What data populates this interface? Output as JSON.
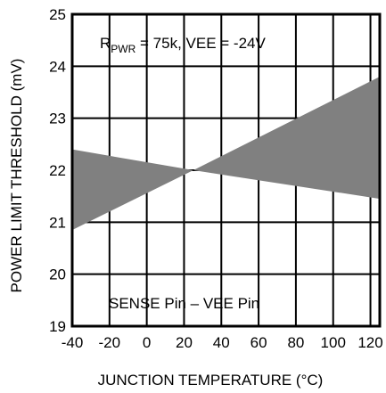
{
  "chart_data": {
    "type": "area",
    "title": "",
    "xlabel": "JUNCTION TEMPERATURE (°C)",
    "ylabel": "POWER LIMIT THRESHOLD (mV)",
    "xlim": [
      -40,
      125
    ],
    "ylim": [
      19,
      25
    ],
    "grid": true,
    "x_ticks": [
      -40,
      -20,
      0,
      20,
      40,
      60,
      80,
      100,
      120
    ],
    "y_ticks": [
      19,
      20,
      21,
      22,
      23,
      24,
      25
    ],
    "band": {
      "x": [
        -40,
        25,
        125
      ],
      "upper": [
        22.4,
        22.0,
        23.8
      ],
      "lower": [
        20.85,
        22.0,
        21.45
      ]
    },
    "annotations": {
      "condition_prefix": "R",
      "condition_sub": "PWR",
      "condition_rest": " = 75k, VEE = -24V",
      "pin_label": "SENSE Pin – VEE Pin"
    },
    "colors": {
      "band": "#808080",
      "grid": "#000000"
    }
  }
}
